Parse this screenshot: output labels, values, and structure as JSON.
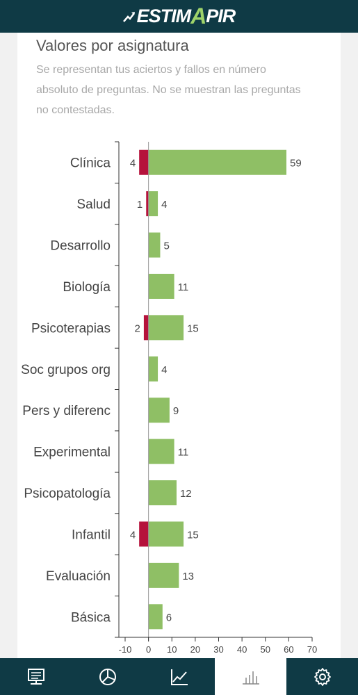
{
  "header": {
    "logo_prefix": "ESTIM",
    "logo_accent": "A",
    "logo_suffix": "PIR"
  },
  "card": {
    "title": "Valores por asignatura",
    "subtitle": "Se representan tus aciertos y fallos en número absoluto de preguntas. No se muestran las preguntas no contestadas."
  },
  "chart_data": {
    "type": "bar",
    "orientation": "horizontal",
    "categories": [
      "Clínica",
      "Salud",
      "Desarrollo",
      "Biología",
      "Psicoterapias",
      "Soc grupos org",
      "Pers y diferenc",
      "Experimental",
      "Psicopatología",
      "Infantil",
      "Evaluación",
      "Básica"
    ],
    "series": [
      {
        "values": [
          59,
          4,
          5,
          11,
          15,
          4,
          9,
          11,
          12,
          15,
          13,
          6
        ],
        "color": "#8fbf65"
      },
      {
        "values": [
          4,
          1,
          0,
          0,
          2,
          0,
          0,
          0,
          0,
          4,
          0,
          0
        ],
        "color": "#b5123b"
      }
    ],
    "xlim": [
      -10,
      70
    ],
    "xticks": [
      "-10",
      "0",
      "10",
      "20",
      "30",
      "40",
      "50",
      "60",
      "70"
    ],
    "grid": false
  },
  "nav": {
    "tabs": [
      {
        "icon": "exam-icon",
        "active": false
      },
      {
        "icon": "pie-chart-icon",
        "active": false
      },
      {
        "icon": "line-chart-icon",
        "active": false
      },
      {
        "icon": "bar-chart-icon",
        "active": true
      },
      {
        "icon": "gear-icon",
        "active": false
      }
    ]
  }
}
